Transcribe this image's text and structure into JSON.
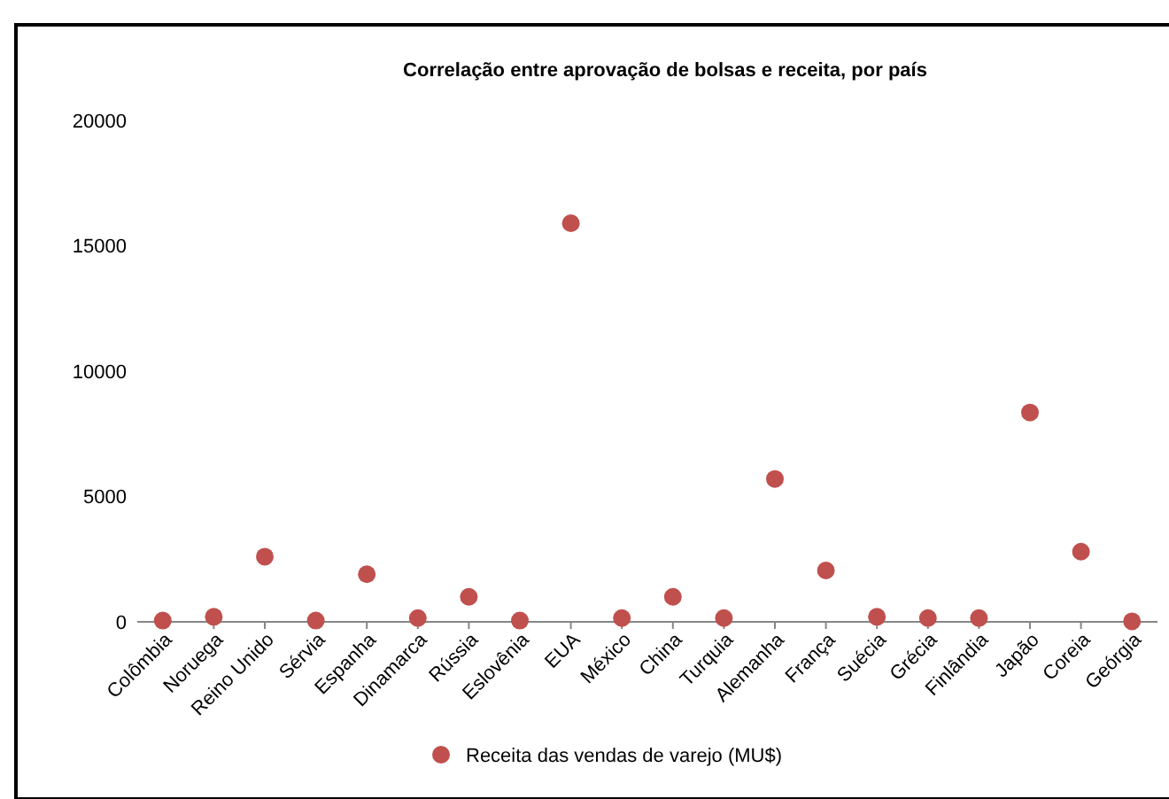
{
  "chart_data": {
    "type": "scatter",
    "title": "Correlação entre aprovação de bolsas e receita, por país",
    "categories": [
      "Colômbia",
      "Noruega",
      "Reino Unido",
      "Sérvia",
      "Espanha",
      "Dinamarca",
      "Rússia",
      "Eslovênia",
      "EUA",
      "México",
      "China",
      "Turquia",
      "Alemanha",
      "França",
      "Suécia",
      "Grécia",
      "Finlândia",
      "Japão",
      "Coreia",
      "Geórgia"
    ],
    "series": [
      {
        "name": "Receita das vendas de varejo (MU$)",
        "color": "#c0504d",
        "values": [
          50,
          200,
          2600,
          50,
          1900,
          150,
          1000,
          50,
          15900,
          150,
          1000,
          150,
          5700,
          2050,
          200,
          150,
          150,
          8350,
          2800,
          20
        ]
      }
    ],
    "ylim": [
      0,
      20000
    ],
    "yticks": [
      0,
      5000,
      10000,
      15000,
      20000
    ],
    "grid": false,
    "legend": "bottom",
    "marker": "circle"
  }
}
